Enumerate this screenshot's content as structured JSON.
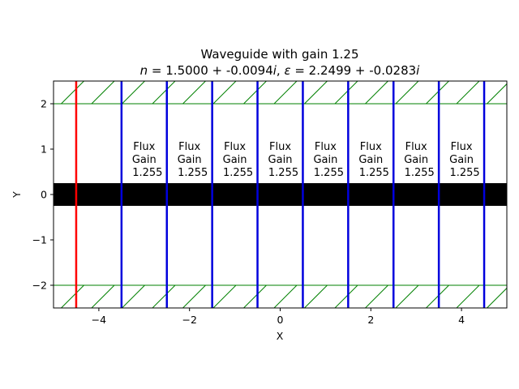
{
  "chart_data": {
    "type": "diagram-plot",
    "title": "Waveguide with gain 1.25",
    "subtitle": {
      "n_symbol": "n",
      "n_value": " = 1.5000 + -0.0094",
      "eps_symbol": "ε",
      "eps_value": " = 2.2499 + -0.0283",
      "imag_unit": "i",
      "separator": ", "
    },
    "xlabel": "X",
    "ylabel": "Y",
    "xlim": [
      -5,
      5
    ],
    "ylim": [
      -2.5,
      2.5
    ],
    "x_ticks": [
      -4,
      -2,
      0,
      2,
      4
    ],
    "x_tick_labels": [
      "−4",
      "−2",
      "0",
      "2",
      "4"
    ],
    "y_ticks": [
      -2,
      -1,
      0,
      1,
      2
    ],
    "y_tick_labels": [
      "−2",
      "−1",
      "0",
      "1",
      "2"
    ],
    "grid": false,
    "waveguide": {
      "y_min": -0.25,
      "y_max": 0.25,
      "color": "#000000"
    },
    "pml_regions": [
      {
        "y_min": 2.0,
        "y_max": 2.5
      },
      {
        "y_min": -2.5,
        "y_max": -2.0
      }
    ],
    "pml_color": "#008000",
    "source": {
      "x": -4.5,
      "color": "#ff0000"
    },
    "flux_monitors": {
      "color": "#0000dd",
      "x": [
        -3.5,
        -2.5,
        -1.5,
        -0.5,
        0.5,
        1.5,
        2.5,
        3.5,
        4.5
      ]
    },
    "annotations": [
      {
        "x": -3.0,
        "lines": [
          "Flux",
          "Gain",
          "1.255"
        ]
      },
      {
        "x": -2.0,
        "lines": [
          "Flux",
          "Gain",
          "1.255"
        ]
      },
      {
        "x": -1.0,
        "lines": [
          "Flux",
          "Gain",
          "1.255"
        ]
      },
      {
        "x": 0.0,
        "lines": [
          "Flux",
          "Gain",
          "1.255"
        ]
      },
      {
        "x": 1.0,
        "lines": [
          "Flux",
          "Gain",
          "1.255"
        ]
      },
      {
        "x": 2.0,
        "lines": [
          "Flux",
          "Gain",
          "1.255"
        ]
      },
      {
        "x": 3.0,
        "lines": [
          "Flux",
          "Gain",
          "1.255"
        ]
      },
      {
        "x": 4.0,
        "lines": [
          "Flux",
          "Gain",
          "1.255"
        ]
      }
    ]
  }
}
